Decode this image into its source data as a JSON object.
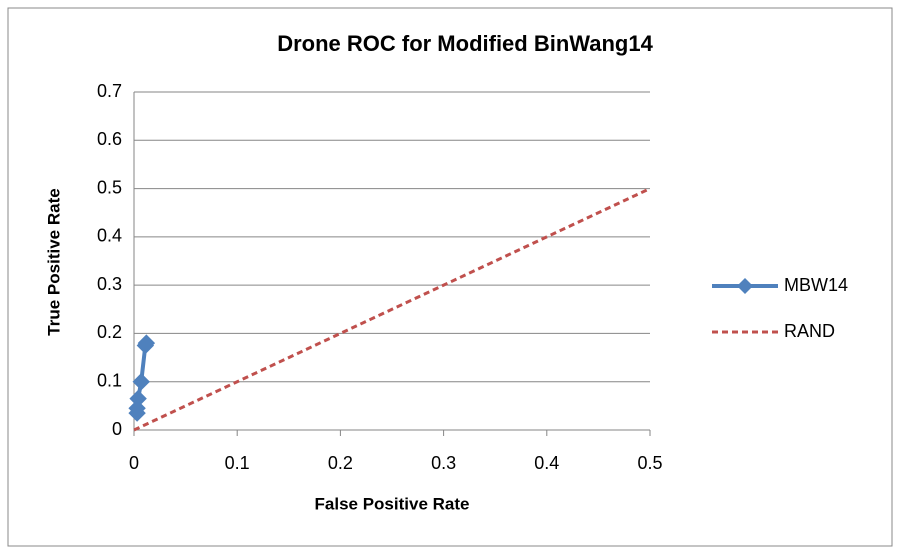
{
  "chart_data": {
    "type": "line",
    "title": "Drone ROC for Modified BinWang14",
    "xlabel": "False Positive Rate",
    "ylabel": "True Positive Rate",
    "xlim": [
      0,
      0.5
    ],
    "xticks": [
      0,
      0.1,
      0.2,
      0.3,
      0.4,
      0.5
    ],
    "ylim": [
      0,
      0.7
    ],
    "yticks": [
      0,
      0.1,
      0.2,
      0.3,
      0.4,
      0.5,
      0.6,
      0.7
    ],
    "grid": true,
    "legend": "right",
    "series": [
      {
        "name": "MBW14",
        "color": "#4f81bd",
        "marker": "diamond",
        "line_style": "solid",
        "x": [
          0.003,
          0.003,
          0.004,
          0.007,
          0.011,
          0.012
        ],
        "values": [
          0.035,
          0.045,
          0.065,
          0.1,
          0.175,
          0.18
        ]
      },
      {
        "name": "RAND",
        "color": "#c0504d",
        "line_style": "dashed",
        "x": [
          0,
          0.5
        ],
        "values": [
          0,
          0.5
        ]
      }
    ]
  }
}
